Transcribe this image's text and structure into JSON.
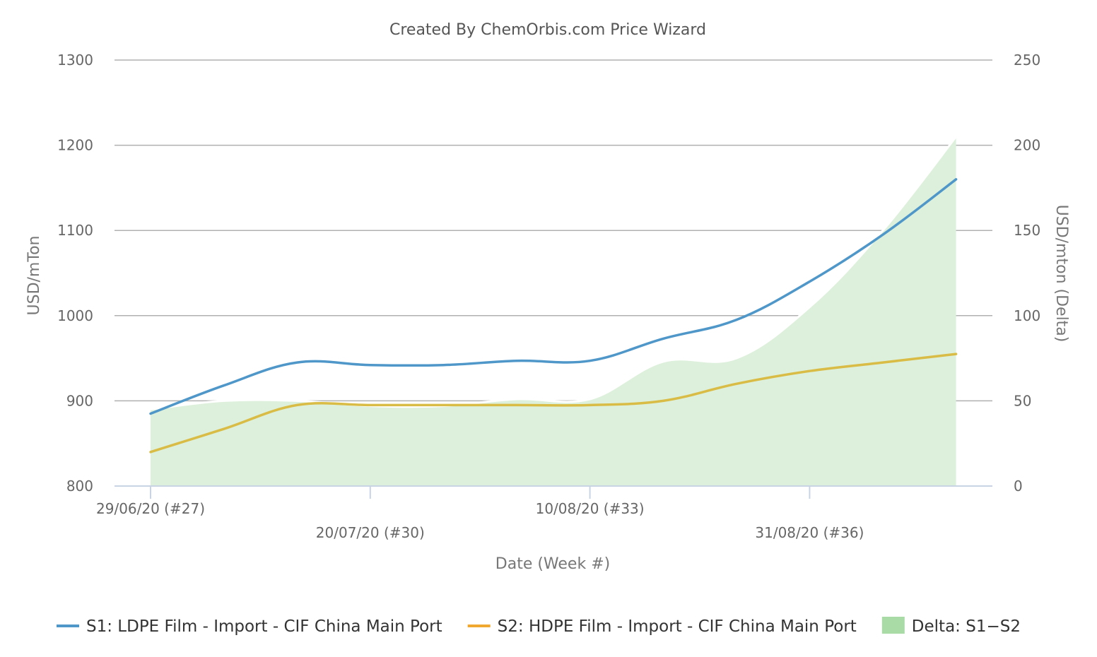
{
  "chart_data": {
    "type": "line",
    "title": "Created By ChemOrbis.com Price Wizard",
    "xlabel": "Date (Week #)",
    "ylabel": "USD/mTon",
    "y2label": "USD/mton (Delta)",
    "ylim": [
      800,
      1300
    ],
    "y2lim": [
      0,
      250
    ],
    "yticks": [
      "800",
      "900",
      "1000",
      "1100",
      "1200",
      "1300"
    ],
    "y2ticks": [
      "0",
      "50",
      "100",
      "150",
      "200",
      "250"
    ],
    "x_tick_labels": [
      {
        "week": 27,
        "label": "29/06/20 (#27)",
        "row": 0
      },
      {
        "week": 30,
        "label": "20/07/20 (#30)",
        "row": 1
      },
      {
        "week": 33,
        "label": "10/08/20 (#33)",
        "row": 0
      },
      {
        "week": 36,
        "label": "31/08/20 (#36)",
        "row": 1
      }
    ],
    "x_weeks": [
      27,
      28,
      29,
      30,
      31,
      32,
      33,
      34,
      35,
      36,
      37,
      38
    ],
    "grid": true,
    "legend_position": "bottom",
    "series": [
      {
        "name": "S1: LDPE Film - Import - CIF China Main Port",
        "axis": "left",
        "kind": "line",
        "color": "#4f97c9",
        "values": [
          885,
          918,
          945,
          942,
          942,
          947,
          947,
          973,
          995,
          1040,
          1095,
          1160
        ]
      },
      {
        "name": "S2: HDPE Film - Import - CIF China Main Port",
        "axis": "left",
        "kind": "line",
        "color": "#d9bc45",
        "legend_color": "#f0a830",
        "values": [
          840,
          867,
          895,
          895,
          895,
          895,
          895,
          900,
          920,
          935,
          945,
          955
        ]
      },
      {
        "name": "Delta: S1−S2",
        "axis": "right",
        "kind": "area",
        "color": "#ddf0db",
        "legend_color": "#a9dba6",
        "values": [
          45,
          50,
          50,
          47,
          47,
          51,
          51,
          73,
          75,
          105,
          150,
          205
        ]
      }
    ]
  }
}
